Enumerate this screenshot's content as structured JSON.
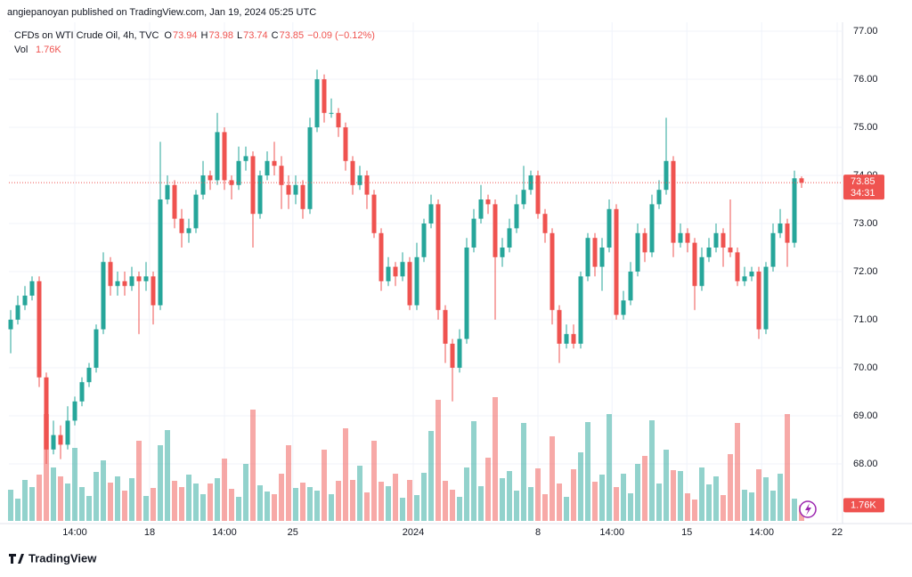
{
  "header": {
    "byline": "angiepanoyan published on TradingView.com, Jan 19, 2024 05:25 UTC"
  },
  "chart_data": {
    "type": "candlestick",
    "symbol": "CFDs on WTI Crude Oil, 4h, TVC",
    "change_label": "−0.09 (−0.12%)",
    "volume_title": "Vol",
    "volume_last_label": "1.76K",
    "countdown": "34:31",
    "up_color": "#26a69a",
    "down_color": "#ef5350",
    "ylim": [
      66.815,
      77.185
    ],
    "yticks": [
      {
        "value": 68,
        "label": "68.00"
      },
      {
        "value": 69,
        "label": "69.00"
      },
      {
        "value": 70,
        "label": "70.00"
      },
      {
        "value": 71,
        "label": "71.00"
      },
      {
        "value": 72,
        "label": "72.00"
      },
      {
        "value": 73,
        "label": "73.00"
      },
      {
        "value": 74,
        "label": "74.00"
      },
      {
        "value": 75,
        "label": "75.00"
      },
      {
        "value": 76,
        "label": "76.00"
      },
      {
        "value": 77,
        "label": "77.00"
      }
    ],
    "xlim": [
      -0.25,
      116.75
    ],
    "xticks": [
      {
        "value": 9,
        "label": "14:00"
      },
      {
        "value": 19.5,
        "label": "18"
      },
      {
        "value": 30,
        "label": "14:00"
      },
      {
        "value": 39.6,
        "label": "25"
      },
      {
        "value": 56.5,
        "label": "2024"
      },
      {
        "value": 74,
        "label": "8"
      },
      {
        "value": 84.4,
        "label": "14:00"
      },
      {
        "value": 94.9,
        "label": "15"
      },
      {
        "value": 105.4,
        "label": "14:00"
      },
      {
        "value": 116,
        "label": "22"
      }
    ],
    "volume_lim": [
      0,
      16000
    ],
    "open": [
      70.8,
      71.0,
      71.3,
      71.5,
      71.8,
      69.8,
      68.3,
      68.6,
      68.4,
      68.9,
      69.3,
      69.7,
      70.0,
      70.8,
      72.2,
      71.7,
      71.8,
      71.7,
      71.9,
      71.8,
      71.9,
      71.3,
      73.5,
      73.8,
      73.1,
      72.8,
      72.9,
      73.6,
      74.0,
      73.9,
      74.9,
      73.9,
      73.8,
      74.3,
      74.4,
      73.2,
      74.0,
      74.3,
      74.2,
      73.8,
      73.6,
      73.8,
      73.3,
      75.0,
      76.0,
      75.3,
      75.3,
      75.0,
      74.3,
      73.8,
      74.0,
      73.6,
      72.8,
      71.8,
      72.1,
      71.9,
      72.2,
      71.3,
      72.3,
      73.0,
      73.4,
      71.2,
      70.5,
      70.0,
      70.6,
      72.5,
      73.1,
      73.5,
      73.4,
      72.3,
      72.5,
      72.9,
      73.4,
      73.7,
      74.0,
      73.2,
      72.8,
      71.2,
      70.5,
      70.7,
      70.5,
      71.9,
      72.7,
      72.1,
      72.5,
      73.3,
      71.1,
      71.4,
      72.0,
      72.8,
      72.4,
      73.4,
      73.7,
      74.3,
      72.6,
      72.8,
      72.6,
      71.7,
      72.3,
      72.5,
      72.8,
      72.5,
      72.4,
      71.8,
      71.9,
      72.0,
      70.8,
      72.1,
      72.8,
      73.0,
      72.6,
      73.94
    ],
    "high": [
      71.2,
      71.5,
      71.7,
      71.9,
      71.9,
      69.9,
      68.9,
      68.8,
      69.2,
      69.4,
      69.8,
      70.1,
      70.9,
      72.4,
      72.3,
      72.0,
      72.0,
      72.1,
      72.0,
      72.2,
      72.0,
      74.7,
      74.0,
      73.9,
      73.3,
      73.1,
      73.7,
      74.3,
      74.1,
      75.3,
      75.0,
      74.0,
      74.6,
      74.6,
      74.5,
      74.1,
      74.5,
      74.7,
      74.4,
      74.0,
      74.0,
      73.9,
      75.2,
      76.2,
      76.1,
      75.6,
      75.4,
      75.1,
      74.4,
      74.2,
      74.1,
      73.7,
      72.9,
      72.3,
      72.2,
      72.4,
      72.3,
      72.6,
      73.1,
      73.6,
      73.5,
      71.3,
      70.6,
      70.8,
      72.7,
      73.3,
      73.8,
      73.6,
      73.5,
      72.7,
      73.1,
      73.6,
      74.2,
      74.1,
      74.1,
      73.3,
      72.9,
      71.3,
      70.9,
      70.9,
      72.0,
      72.8,
      72.8,
      72.7,
      73.5,
      73.4,
      71.6,
      72.2,
      73.0,
      72.9,
      73.6,
      73.9,
      75.2,
      74.4,
      73.0,
      72.9,
      72.7,
      72.5,
      72.7,
      73.0,
      72.9,
      73.5,
      72.5,
      72.1,
      72.1,
      72.1,
      72.2,
      73.0,
      73.3,
      73.1,
      74.1,
      73.98
    ],
    "low": [
      70.3,
      70.9,
      71.2,
      71.4,
      69.6,
      68.0,
      68.2,
      68.1,
      68.3,
      68.8,
      69.2,
      69.6,
      69.9,
      70.7,
      71.5,
      71.5,
      71.5,
      71.6,
      70.7,
      71.6,
      70.9,
      71.2,
      73.4,
      72.9,
      72.5,
      72.6,
      72.8,
      73.5,
      73.7,
      73.8,
      73.7,
      73.5,
      73.7,
      74.1,
      72.5,
      73.1,
      73.9,
      74.0,
      73.3,
      73.3,
      73.4,
      73.1,
      73.2,
      74.9,
      75.1,
      75.2,
      74.8,
      74.1,
      73.6,
      73.7,
      73.3,
      72.7,
      71.6,
      71.7,
      71.7,
      71.8,
      71.2,
      71.2,
      72.2,
      72.9,
      71.0,
      70.1,
      69.3,
      69.9,
      70.5,
      72.4,
      73.0,
      73.2,
      71.0,
      72.1,
      72.4,
      72.8,
      73.3,
      73.6,
      73.1,
      72.6,
      70.9,
      70.1,
      70.4,
      70.4,
      70.4,
      71.8,
      71.9,
      71.6,
      72.4,
      71.0,
      71.0,
      71.3,
      71.9,
      72.2,
      72.3,
      73.3,
      73.6,
      72.3,
      72.5,
      72.4,
      71.2,
      71.6,
      72.2,
      72.4,
      72.1,
      72.3,
      71.7,
      71.7,
      71.8,
      70.6,
      70.7,
      72.0,
      72.7,
      72.1,
      72.5,
      73.74
    ],
    "close": [
      71.0,
      71.3,
      71.5,
      71.8,
      69.8,
      68.3,
      68.6,
      68.4,
      68.9,
      69.3,
      69.7,
      70.0,
      70.8,
      72.2,
      71.7,
      71.8,
      71.7,
      71.9,
      71.8,
      71.9,
      71.3,
      73.5,
      73.8,
      73.1,
      72.8,
      72.9,
      73.6,
      74.0,
      73.9,
      74.9,
      73.9,
      73.8,
      74.3,
      74.4,
      73.2,
      74.0,
      74.3,
      74.2,
      73.8,
      73.6,
      73.8,
      73.3,
      75.0,
      76.0,
      75.3,
      75.3,
      75.0,
      74.3,
      73.8,
      74.0,
      73.6,
      72.8,
      71.8,
      72.1,
      71.9,
      72.2,
      71.3,
      72.3,
      73.0,
      73.4,
      71.2,
      70.5,
      70.0,
      70.6,
      72.5,
      73.1,
      73.5,
      73.4,
      72.3,
      72.5,
      72.9,
      73.4,
      73.7,
      74.0,
      73.2,
      72.8,
      71.2,
      70.5,
      70.7,
      70.5,
      71.9,
      72.7,
      72.1,
      72.5,
      73.3,
      71.1,
      71.4,
      72.0,
      72.8,
      72.4,
      73.4,
      73.7,
      74.3,
      72.6,
      72.8,
      72.6,
      71.7,
      72.3,
      72.5,
      72.8,
      72.5,
      72.4,
      71.8,
      71.9,
      72.0,
      70.8,
      72.1,
      72.8,
      73.0,
      72.6,
      73.94,
      73.85
    ],
    "volume": [
      3500,
      2500,
      4600,
      3800,
      5200,
      12000,
      6000,
      5000,
      4200,
      8200,
      3800,
      2800,
      5500,
      6800,
      4300,
      5000,
      3400,
      4800,
      9000,
      2800,
      3700,
      8500,
      10200,
      4500,
      3800,
      5200,
      4200,
      3000,
      4200,
      4800,
      7000,
      3600,
      2700,
      6400,
      12500,
      4000,
      3300,
      3000,
      5300,
      8500,
      3700,
      4300,
      3800,
      3400,
      8000,
      3000,
      4500,
      10400,
      4600,
      6200,
      3200,
      9000,
      4400,
      3900,
      5300,
      2600,
      4600,
      2900,
      5400,
      10100,
      13600,
      4500,
      3500,
      2700,
      6000,
      11200,
      3900,
      7100,
      13900,
      4800,
      5600,
      3400,
      11000,
      3800,
      5900,
      3000,
      9500,
      4200,
      2700,
      5800,
      7700,
      11100,
      4400,
      5200,
      12000,
      3800,
      5300,
      3100,
      6400,
      7300,
      11300,
      4200,
      8000,
      5700,
      5600,
      3100,
      2400,
      6000,
      4100,
      5000,
      2900,
      7500,
      11000,
      3500,
      3200,
      5800,
      4900,
      3400,
      5300,
      12000,
      2500,
      1760
    ]
  },
  "footer": {
    "brand": "TradingView"
  }
}
